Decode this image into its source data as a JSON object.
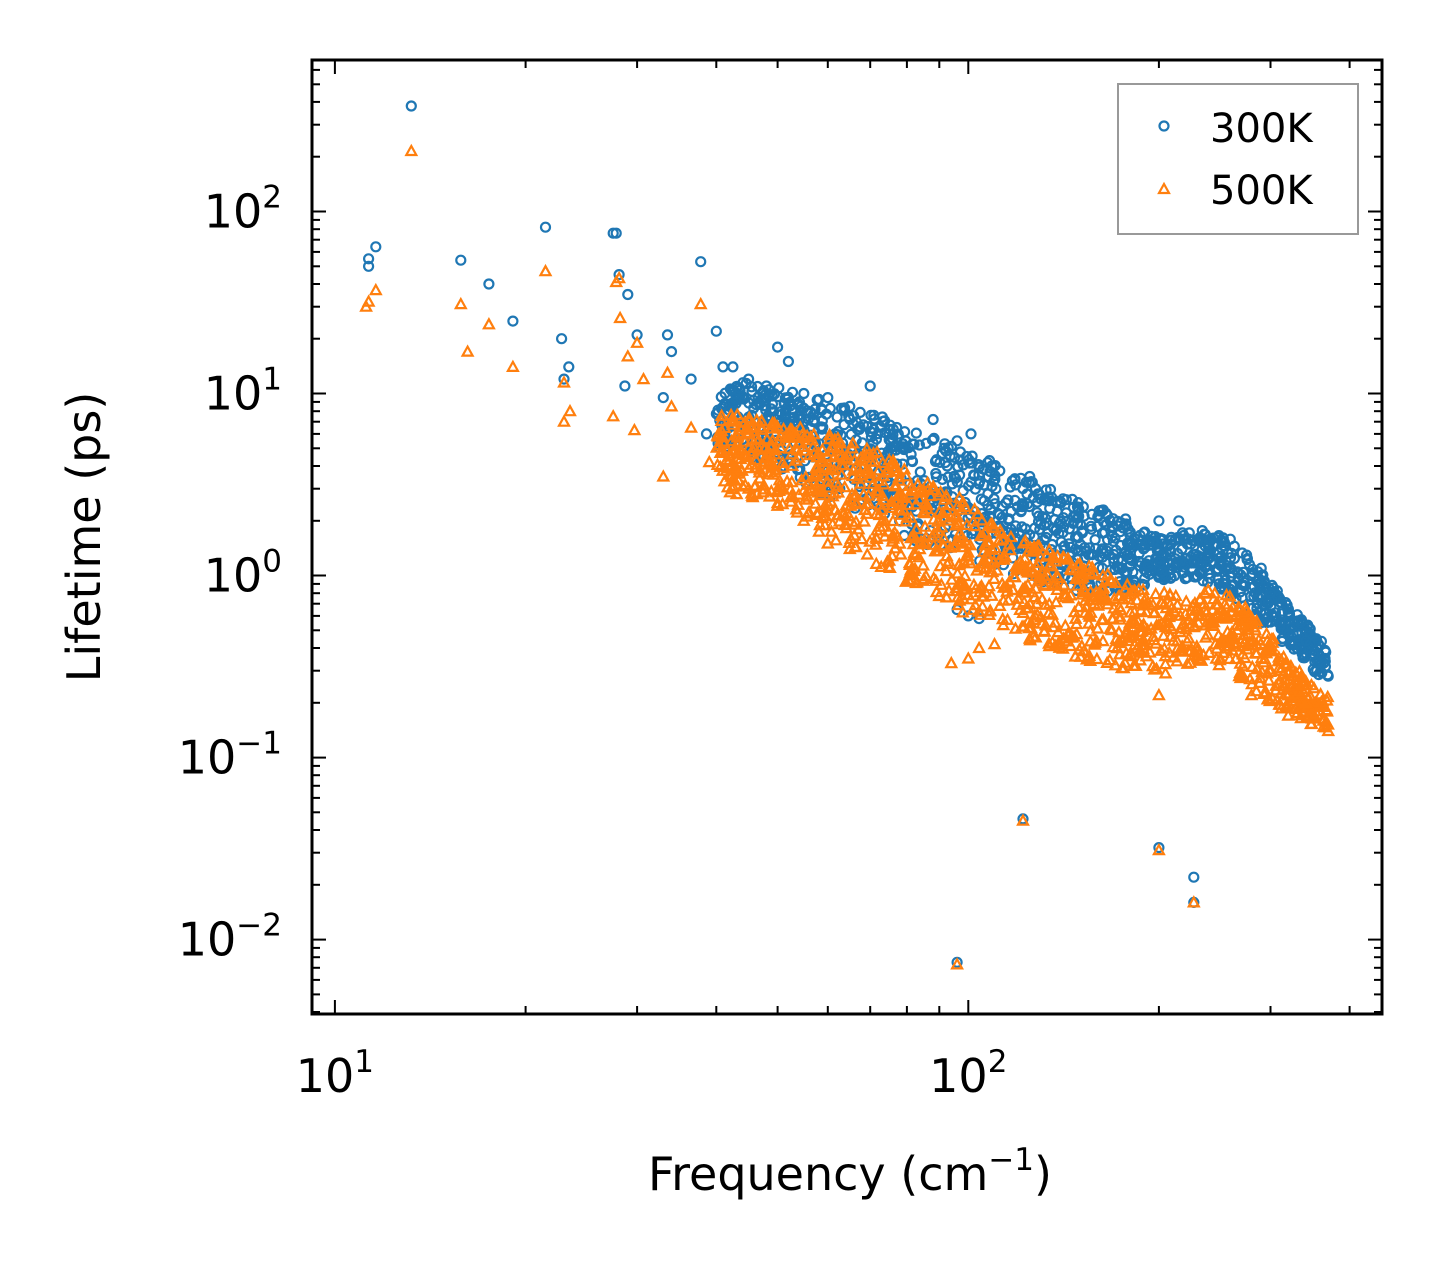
{
  "chart_data": {
    "type": "scatter",
    "title": "",
    "xlabel": {
      "base": "Frequency (cm",
      "sup": "−1",
      "tail": ")"
    },
    "ylabel": "Lifetime (ps)",
    "xscale": "log",
    "yscale": "log",
    "xlim": [
      9.2,
      450
    ],
    "ylim": [
      0.0039,
      680
    ],
    "xticks": [
      {
        "value": 10,
        "base": "10",
        "exp": "1"
      },
      {
        "value": 100,
        "base": "10",
        "exp": "2"
      }
    ],
    "yticks": [
      {
        "value": 0.01,
        "base": "10",
        "exp": "−2"
      },
      {
        "value": 0.1,
        "base": "10",
        "exp": "−1"
      },
      {
        "value": 1,
        "base": "10",
        "exp": "0"
      },
      {
        "value": 10,
        "base": "10",
        "exp": "1"
      },
      {
        "value": 100,
        "base": "10",
        "exp": "2"
      }
    ],
    "legend": {
      "position": "top-right"
    },
    "series": [
      {
        "name": "300K",
        "marker": "circle",
        "color": "#1f77b4",
        "sample_points": [
          [
            11.3,
            55
          ],
          [
            11.3,
            50
          ],
          [
            11.6,
            64
          ],
          [
            13.2,
            380
          ],
          [
            15.8,
            54
          ],
          [
            17.5,
            40
          ],
          [
            19.1,
            25
          ],
          [
            21.5,
            82
          ],
          [
            22.8,
            20
          ],
          [
            23.0,
            12
          ],
          [
            23.4,
            14
          ],
          [
            27.5,
            76
          ],
          [
            27.8,
            76
          ],
          [
            28.1,
            45
          ],
          [
            29.0,
            35
          ],
          [
            30.0,
            21
          ],
          [
            28.7,
            11
          ],
          [
            33.5,
            21
          ],
          [
            34.0,
            17
          ],
          [
            33.0,
            9.5
          ],
          [
            36.5,
            12
          ],
          [
            37.8,
            53
          ],
          [
            38.6,
            6.0
          ],
          [
            40.0,
            22
          ],
          [
            41.0,
            14
          ],
          [
            42.5,
            14
          ],
          [
            45.0,
            12
          ],
          [
            48.0,
            11
          ],
          [
            50.0,
            18
          ],
          [
            52.0,
            15
          ],
          [
            55.0,
            10
          ],
          [
            60.0,
            9.5
          ],
          [
            65.0,
            8.5
          ],
          [
            70.0,
            11
          ],
          [
            75.0,
            6.0
          ],
          [
            88.0,
            7.2
          ],
          [
            96.0,
            5.5
          ],
          [
            101.0,
            6.0
          ],
          [
            110.0,
            4.0
          ],
          [
            125.0,
            3.5
          ],
          [
            140.0,
            2.5
          ],
          [
            165.0,
            2.2
          ],
          [
            200.0,
            2.0
          ],
          [
            215.0,
            2.0
          ],
          [
            240.0,
            1.5
          ],
          [
            280.0,
            1.0
          ],
          [
            300.0,
            0.8
          ],
          [
            330.0,
            0.4
          ],
          [
            355.0,
            0.3
          ],
          [
            370.0,
            0.28
          ],
          [
            96.0,
            0.65
          ],
          [
            100.0,
            0.6
          ],
          [
            104.0,
            0.58
          ],
          [
            122.0,
            0.046
          ],
          [
            200.0,
            0.032
          ],
          [
            227.0,
            0.022
          ],
          [
            227.0,
            0.016
          ],
          [
            96.0,
            0.0075
          ]
        ],
        "trend_bands": [
          {
            "x": [
              40,
              50,
              60,
              70,
              80,
              100,
              120,
              150,
              180,
              200,
              230,
              260,
              290,
              320,
              350,
              370
            ],
            "low": [
              5.0,
              4.0,
              2.6,
              2.2,
              1.6,
              1.2,
              1.0,
              0.8,
              0.8,
              0.95,
              0.95,
              0.75,
              0.55,
              0.4,
              0.3,
              0.26
            ],
            "high": [
              12,
              11,
              9,
              8,
              6.5,
              5,
              3.5,
              2.6,
              2.0,
              1.6,
              1.8,
              1.6,
              1.1,
              0.7,
              0.5,
              0.4
            ]
          }
        ]
      },
      {
        "name": "500K",
        "marker": "triangle",
        "color": "#ff7f0e",
        "sample_points": [
          [
            11.2,
            30
          ],
          [
            11.3,
            32
          ],
          [
            11.6,
            37
          ],
          [
            13.2,
            215
          ],
          [
            15.8,
            31
          ],
          [
            16.2,
            17
          ],
          [
            17.5,
            24
          ],
          [
            19.1,
            14
          ],
          [
            21.5,
            47
          ],
          [
            23.0,
            11.5
          ],
          [
            23.0,
            7
          ],
          [
            23.5,
            8
          ],
          [
            27.5,
            7.5
          ],
          [
            27.8,
            41
          ],
          [
            28.1,
            43
          ],
          [
            28.2,
            26
          ],
          [
            29.0,
            16
          ],
          [
            30.0,
            19
          ],
          [
            29.7,
            6.3
          ],
          [
            30.7,
            12
          ],
          [
            33.0,
            3.5
          ],
          [
            33.5,
            13
          ],
          [
            34.0,
            8.5
          ],
          [
            36.5,
            6.5
          ],
          [
            37.8,
            31
          ],
          [
            39.0,
            4.2
          ],
          [
            42.5,
            7
          ],
          [
            45.0,
            3
          ],
          [
            50.0,
            2.5
          ],
          [
            55.0,
            2.0
          ],
          [
            60.0,
            1.5
          ],
          [
            65.0,
            1.4
          ],
          [
            94.0,
            0.33
          ],
          [
            100.0,
            0.35
          ],
          [
            104.0,
            0.4
          ],
          [
            110.0,
            0.42
          ],
          [
            125.0,
            0.45
          ],
          [
            200.0,
            0.22
          ],
          [
            250.0,
            0.35
          ],
          [
            280.0,
            0.22
          ],
          [
            320.0,
            0.17
          ],
          [
            370.0,
            0.14
          ],
          [
            122.0,
            0.045
          ],
          [
            200.0,
            0.031
          ],
          [
            227.0,
            0.016
          ],
          [
            96.0,
            0.0073
          ]
        ],
        "trend_bands": [
          {
            "x": [
              40,
              50,
              60,
              70,
              80,
              100,
              120,
              150,
              180,
              200,
              230,
              260,
              290,
              320,
              350,
              370
            ],
            "low": [
              3.0,
              2.4,
              1.6,
              1.2,
              0.9,
              0.6,
              0.45,
              0.35,
              0.3,
              0.28,
              0.33,
              0.3,
              0.2,
              0.18,
              0.15,
              0.14
            ],
            "high": [
              8,
              7,
              6,
              5,
              4,
              2.5,
              1.6,
              1.2,
              0.9,
              0.8,
              0.85,
              0.8,
              0.55,
              0.35,
              0.25,
              0.22
            ]
          }
        ]
      }
    ]
  }
}
